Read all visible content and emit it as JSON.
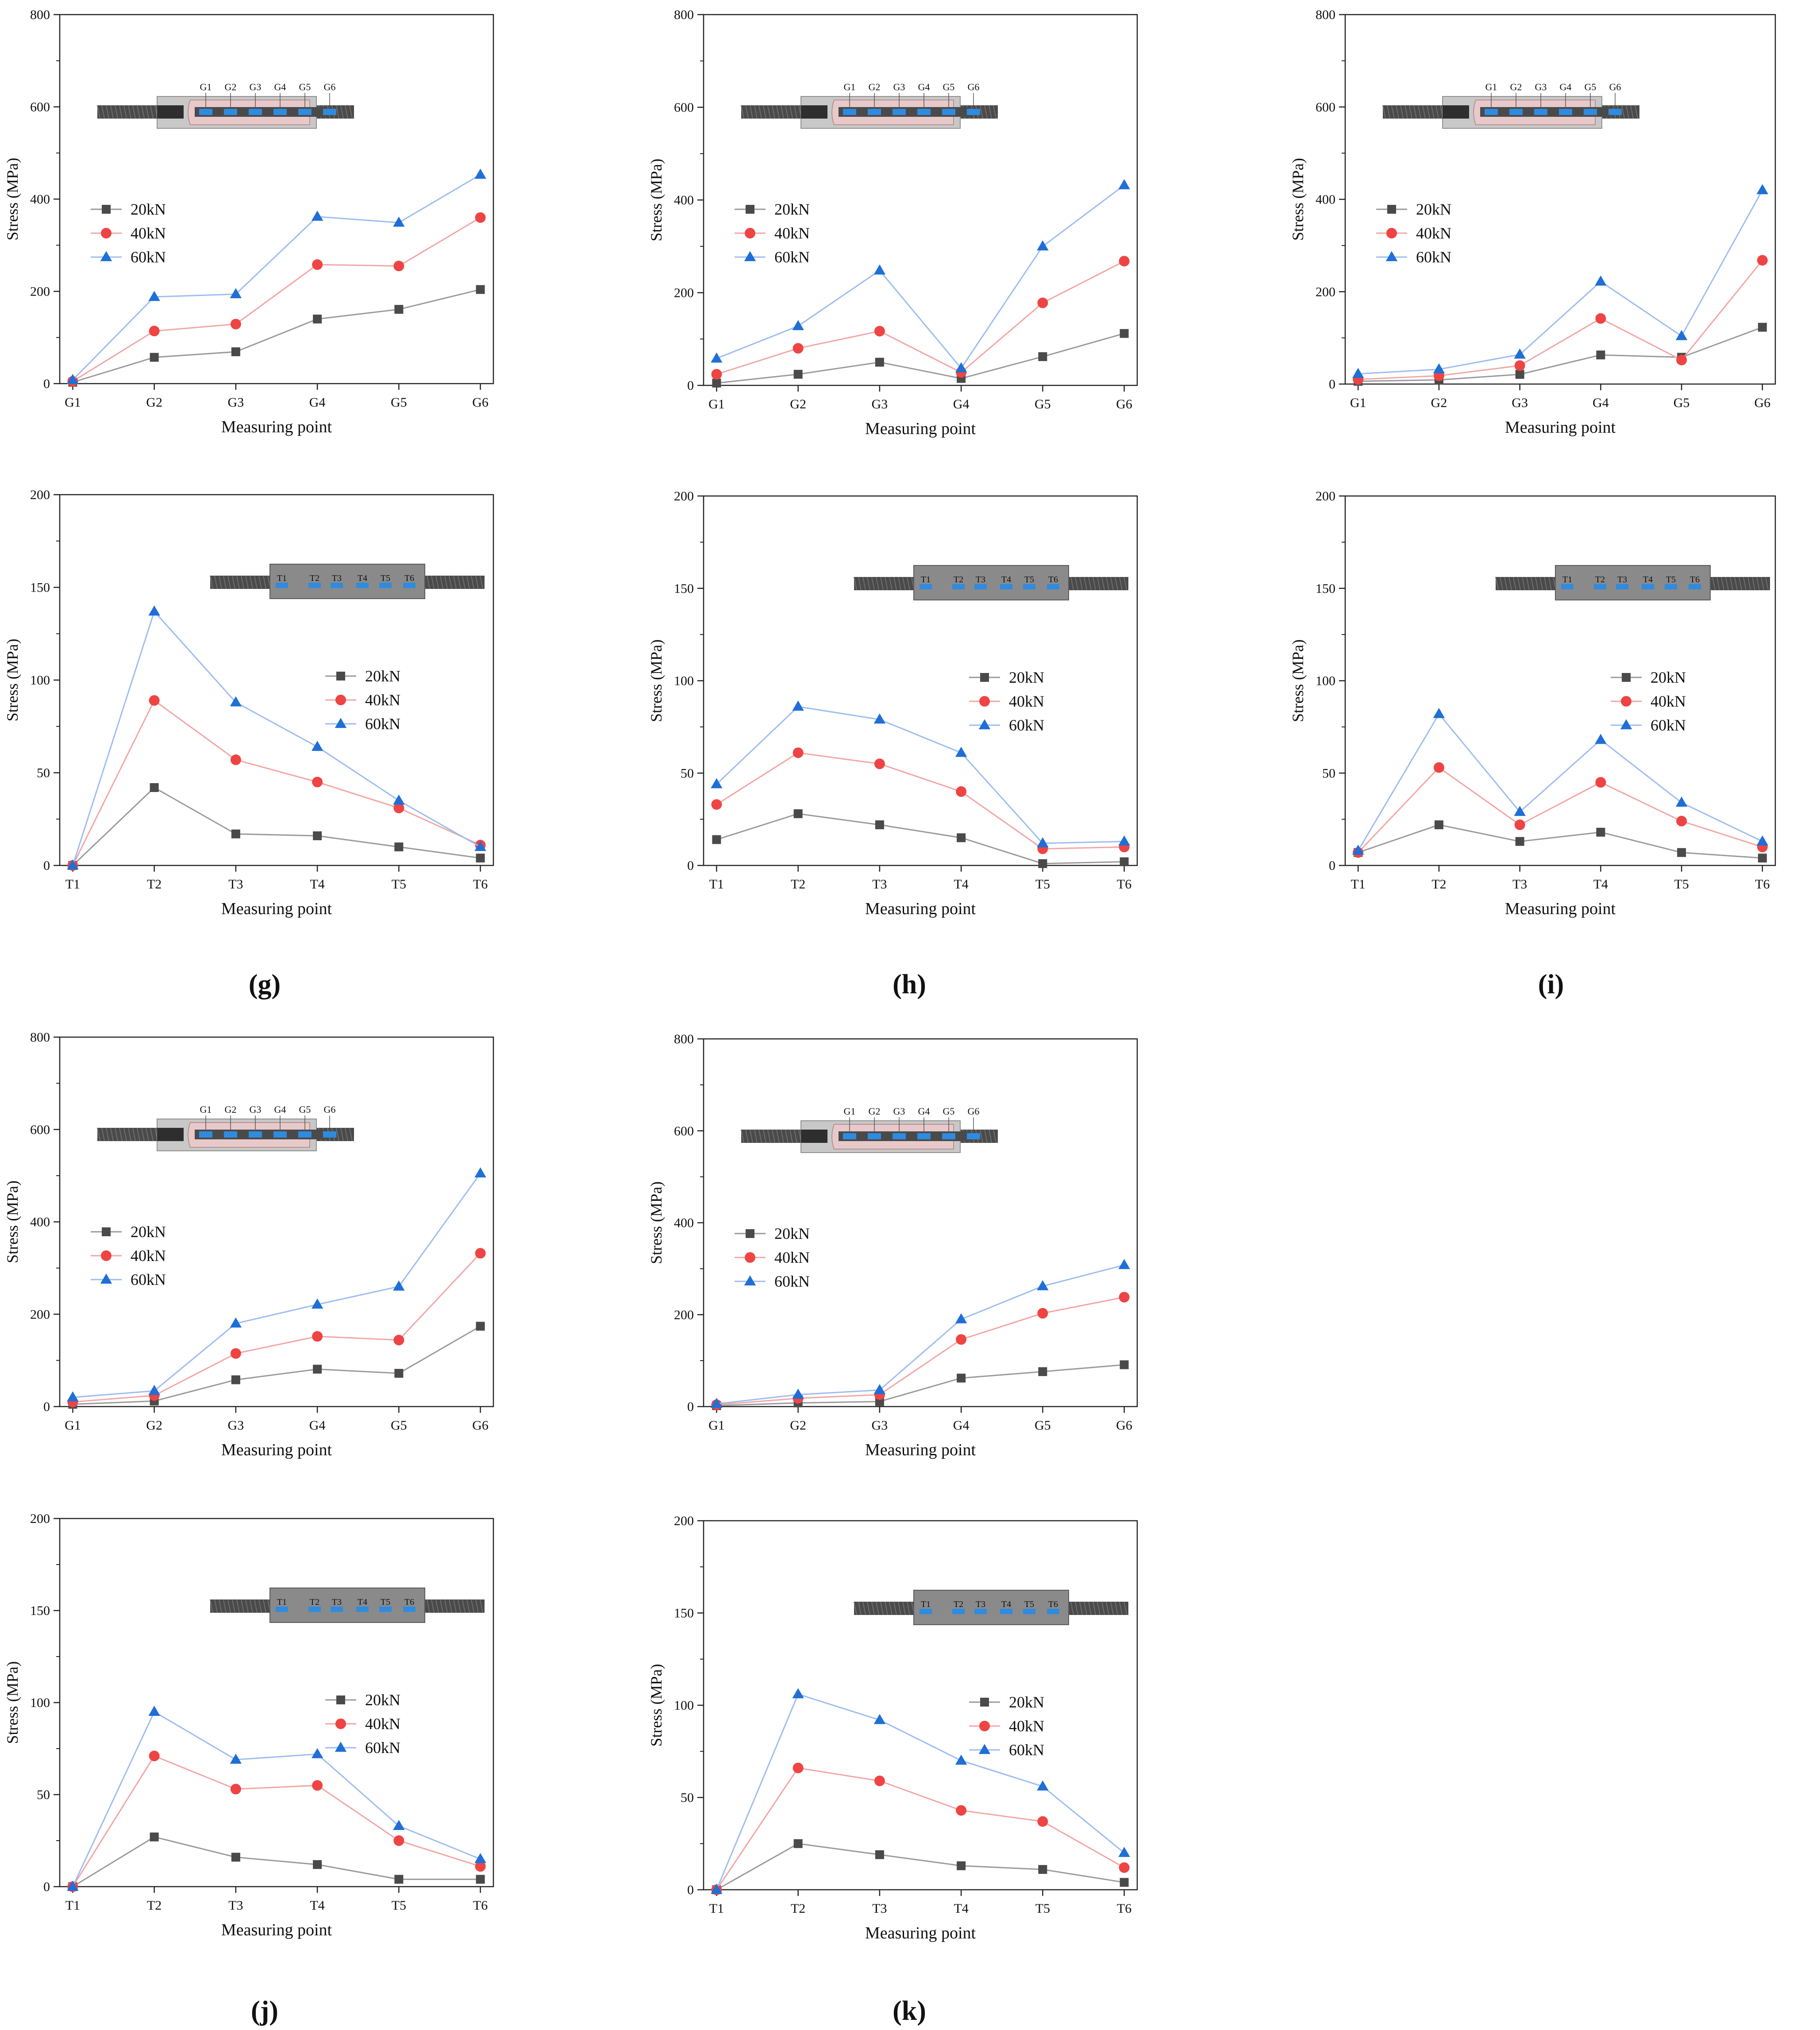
{
  "colors": {
    "s20": "#4a4a4a",
    "s40": "#ef4444",
    "s60": "#1f6fd6",
    "line20": "#9a9a9a",
    "line40": "#f2a5a5",
    "line60": "#9dbcf0"
  },
  "panel_labels": [
    "(g)",
    "(h)",
    "(i)",
    "(j)",
    "(k)"
  ],
  "chart_data": [
    {
      "type": "line",
      "xlabel": "Measuring point",
      "ylabel": "Stress (MPa)",
      "categories": [
        "G1",
        "G2",
        "G3",
        "G4",
        "G5",
        "G6"
      ],
      "ylim": [
        0,
        800
      ],
      "yticks": [
        0,
        200,
        400,
        600,
        800
      ],
      "legend": "left",
      "diagram": "G",
      "series": [
        {
          "name": "20kN",
          "values": [
            3,
            57,
            69,
            140,
            161,
            204
          ]
        },
        {
          "name": "40kN",
          "values": [
            5,
            114,
            129,
            258,
            255,
            360
          ]
        },
        {
          "name": "60kN",
          "values": [
            8,
            188,
            194,
            362,
            349,
            453
          ]
        }
      ]
    },
    {
      "type": "line",
      "xlabel": "Measuring point",
      "ylabel": "Stress (MPa)",
      "categories": [
        "G1",
        "G2",
        "G3",
        "G4",
        "G5",
        "G6"
      ],
      "ylim": [
        0,
        800
      ],
      "yticks": [
        0,
        200,
        400,
        600,
        800
      ],
      "legend": "left",
      "diagram": "G",
      "series": [
        {
          "name": "20kN",
          "values": [
            5,
            24,
            50,
            15,
            62,
            112
          ]
        },
        {
          "name": "40kN",
          "values": [
            24,
            80,
            117,
            28,
            178,
            268
          ]
        },
        {
          "name": "60kN",
          "values": [
            58,
            128,
            248,
            37,
            300,
            432
          ]
        }
      ]
    },
    {
      "type": "line",
      "xlabel": "Measuring point",
      "ylabel": "Stress (MPa)",
      "categories": [
        "G1",
        "G2",
        "G3",
        "G4",
        "G5",
        "G6"
      ],
      "ylim": [
        0,
        800
      ],
      "yticks": [
        0,
        200,
        400,
        600,
        800
      ],
      "legend": "left",
      "diagram": "G",
      "series": [
        {
          "name": "20kN",
          "values": [
            6,
            9,
            21,
            63,
            58,
            123
          ]
        },
        {
          "name": "40kN",
          "values": [
            10,
            18,
            40,
            142,
            52,
            268
          ]
        },
        {
          "name": "60kN",
          "values": [
            22,
            32,
            64,
            222,
            104,
            420
          ]
        }
      ]
    },
    {
      "type": "line",
      "xlabel": "Measuring point",
      "ylabel": "Stress (MPa)",
      "categories": [
        "T1",
        "T2",
        "T3",
        "T4",
        "T5",
        "T6"
      ],
      "ylim": [
        0,
        200
      ],
      "yticks": [
        0,
        50,
        100,
        150,
        200
      ],
      "legend": "right",
      "diagram": "T",
      "series": [
        {
          "name": "20kN",
          "values": [
            0,
            42,
            17,
            16,
            10,
            4
          ]
        },
        {
          "name": "40kN",
          "values": [
            0,
            89,
            57,
            45,
            31,
            11
          ]
        },
        {
          "name": "60kN",
          "values": [
            0,
            137,
            88,
            64,
            35,
            10
          ]
        }
      ]
    },
    {
      "type": "line",
      "xlabel": "Measuring point",
      "ylabel": "Stress (MPa)",
      "categories": [
        "T1",
        "T2",
        "T3",
        "T4",
        "T5",
        "T6"
      ],
      "ylim": [
        0,
        200
      ],
      "yticks": [
        0,
        50,
        100,
        150,
        200
      ],
      "legend": "right",
      "diagram": "T",
      "series": [
        {
          "name": "20kN",
          "values": [
            14,
            28,
            22,
            15,
            1,
            2
          ]
        },
        {
          "name": "40kN",
          "values": [
            33,
            61,
            55,
            40,
            9,
            10
          ]
        },
        {
          "name": "60kN",
          "values": [
            44,
            86,
            79,
            61,
            12,
            13
          ]
        }
      ]
    },
    {
      "type": "line",
      "xlabel": "Measuring point",
      "ylabel": "Stress (MPa)",
      "categories": [
        "T1",
        "T2",
        "T3",
        "T4",
        "T5",
        "T6"
      ],
      "ylim": [
        0,
        200
      ],
      "yticks": [
        0,
        50,
        100,
        150,
        200
      ],
      "legend": "right",
      "diagram": "T",
      "series": [
        {
          "name": "20kN",
          "values": [
            7,
            22,
            13,
            18,
            7,
            4
          ]
        },
        {
          "name": "40kN",
          "values": [
            7,
            53,
            22,
            45,
            24,
            10
          ]
        },
        {
          "name": "60kN",
          "values": [
            8,
            82,
            29,
            68,
            34,
            13
          ]
        }
      ]
    },
    {
      "type": "line",
      "xlabel": "Measuring point",
      "ylabel": "Stress (MPa)",
      "categories": [
        "G1",
        "G2",
        "G3",
        "G4",
        "G5",
        "G6"
      ],
      "ylim": [
        0,
        800
      ],
      "yticks": [
        0,
        200,
        400,
        600,
        800
      ],
      "legend": "left",
      "diagram": "G",
      "series": [
        {
          "name": "20kN",
          "values": [
            5,
            12,
            58,
            81,
            72,
            174
          ]
        },
        {
          "name": "40kN",
          "values": [
            10,
            24,
            115,
            152,
            144,
            332
          ]
        },
        {
          "name": "60kN",
          "values": [
            20,
            34,
            180,
            221,
            260,
            505
          ]
        }
      ]
    },
    {
      "type": "line",
      "xlabel": "Measuring point",
      "ylabel": "Stress (MPa)",
      "categories": [
        "G1",
        "G2",
        "G3",
        "G4",
        "G5",
        "G6"
      ],
      "ylim": [
        0,
        800
      ],
      "yticks": [
        0,
        200,
        400,
        600,
        800
      ],
      "legend": "left",
      "diagram": "G",
      "series": [
        {
          "name": "20kN",
          "values": [
            2,
            8,
            11,
            62,
            76,
            91
          ]
        },
        {
          "name": "40kN",
          "values": [
            4,
            18,
            26,
            146,
            203,
            238
          ]
        },
        {
          "name": "60kN",
          "values": [
            6,
            26,
            36,
            190,
            262,
            308
          ]
        }
      ]
    },
    {
      "type": "line",
      "xlabel": "Measuring point",
      "ylabel": "Stress (MPa)",
      "categories": [
        "T1",
        "T2",
        "T3",
        "T4",
        "T5",
        "T6"
      ],
      "ylim": [
        0,
        200
      ],
      "yticks": [
        0,
        50,
        100,
        150,
        200
      ],
      "legend": "right",
      "diagram": "T",
      "series": [
        {
          "name": "20kN",
          "values": [
            0,
            27,
            16,
            12,
            4,
            4
          ]
        },
        {
          "name": "40kN",
          "values": [
            0,
            71,
            53,
            55,
            25,
            11
          ]
        },
        {
          "name": "60kN",
          "values": [
            0,
            95,
            69,
            72,
            33,
            15
          ]
        }
      ]
    },
    {
      "type": "line",
      "xlabel": "Measuring point",
      "ylabel": "Stress (MPa)",
      "categories": [
        "T1",
        "T2",
        "T3",
        "T4",
        "T5",
        "T6"
      ],
      "ylim": [
        0,
        200
      ],
      "yticks": [
        0,
        50,
        100,
        150,
        200
      ],
      "legend": "right",
      "diagram": "T",
      "series": [
        {
          "name": "20kN",
          "values": [
            0,
            25,
            19,
            13,
            11,
            4
          ]
        },
        {
          "name": "40kN",
          "values": [
            0,
            66,
            59,
            43,
            37,
            12
          ]
        },
        {
          "name": "60kN",
          "values": [
            0,
            106,
            92,
            70,
            56,
            20
          ]
        }
      ]
    }
  ]
}
